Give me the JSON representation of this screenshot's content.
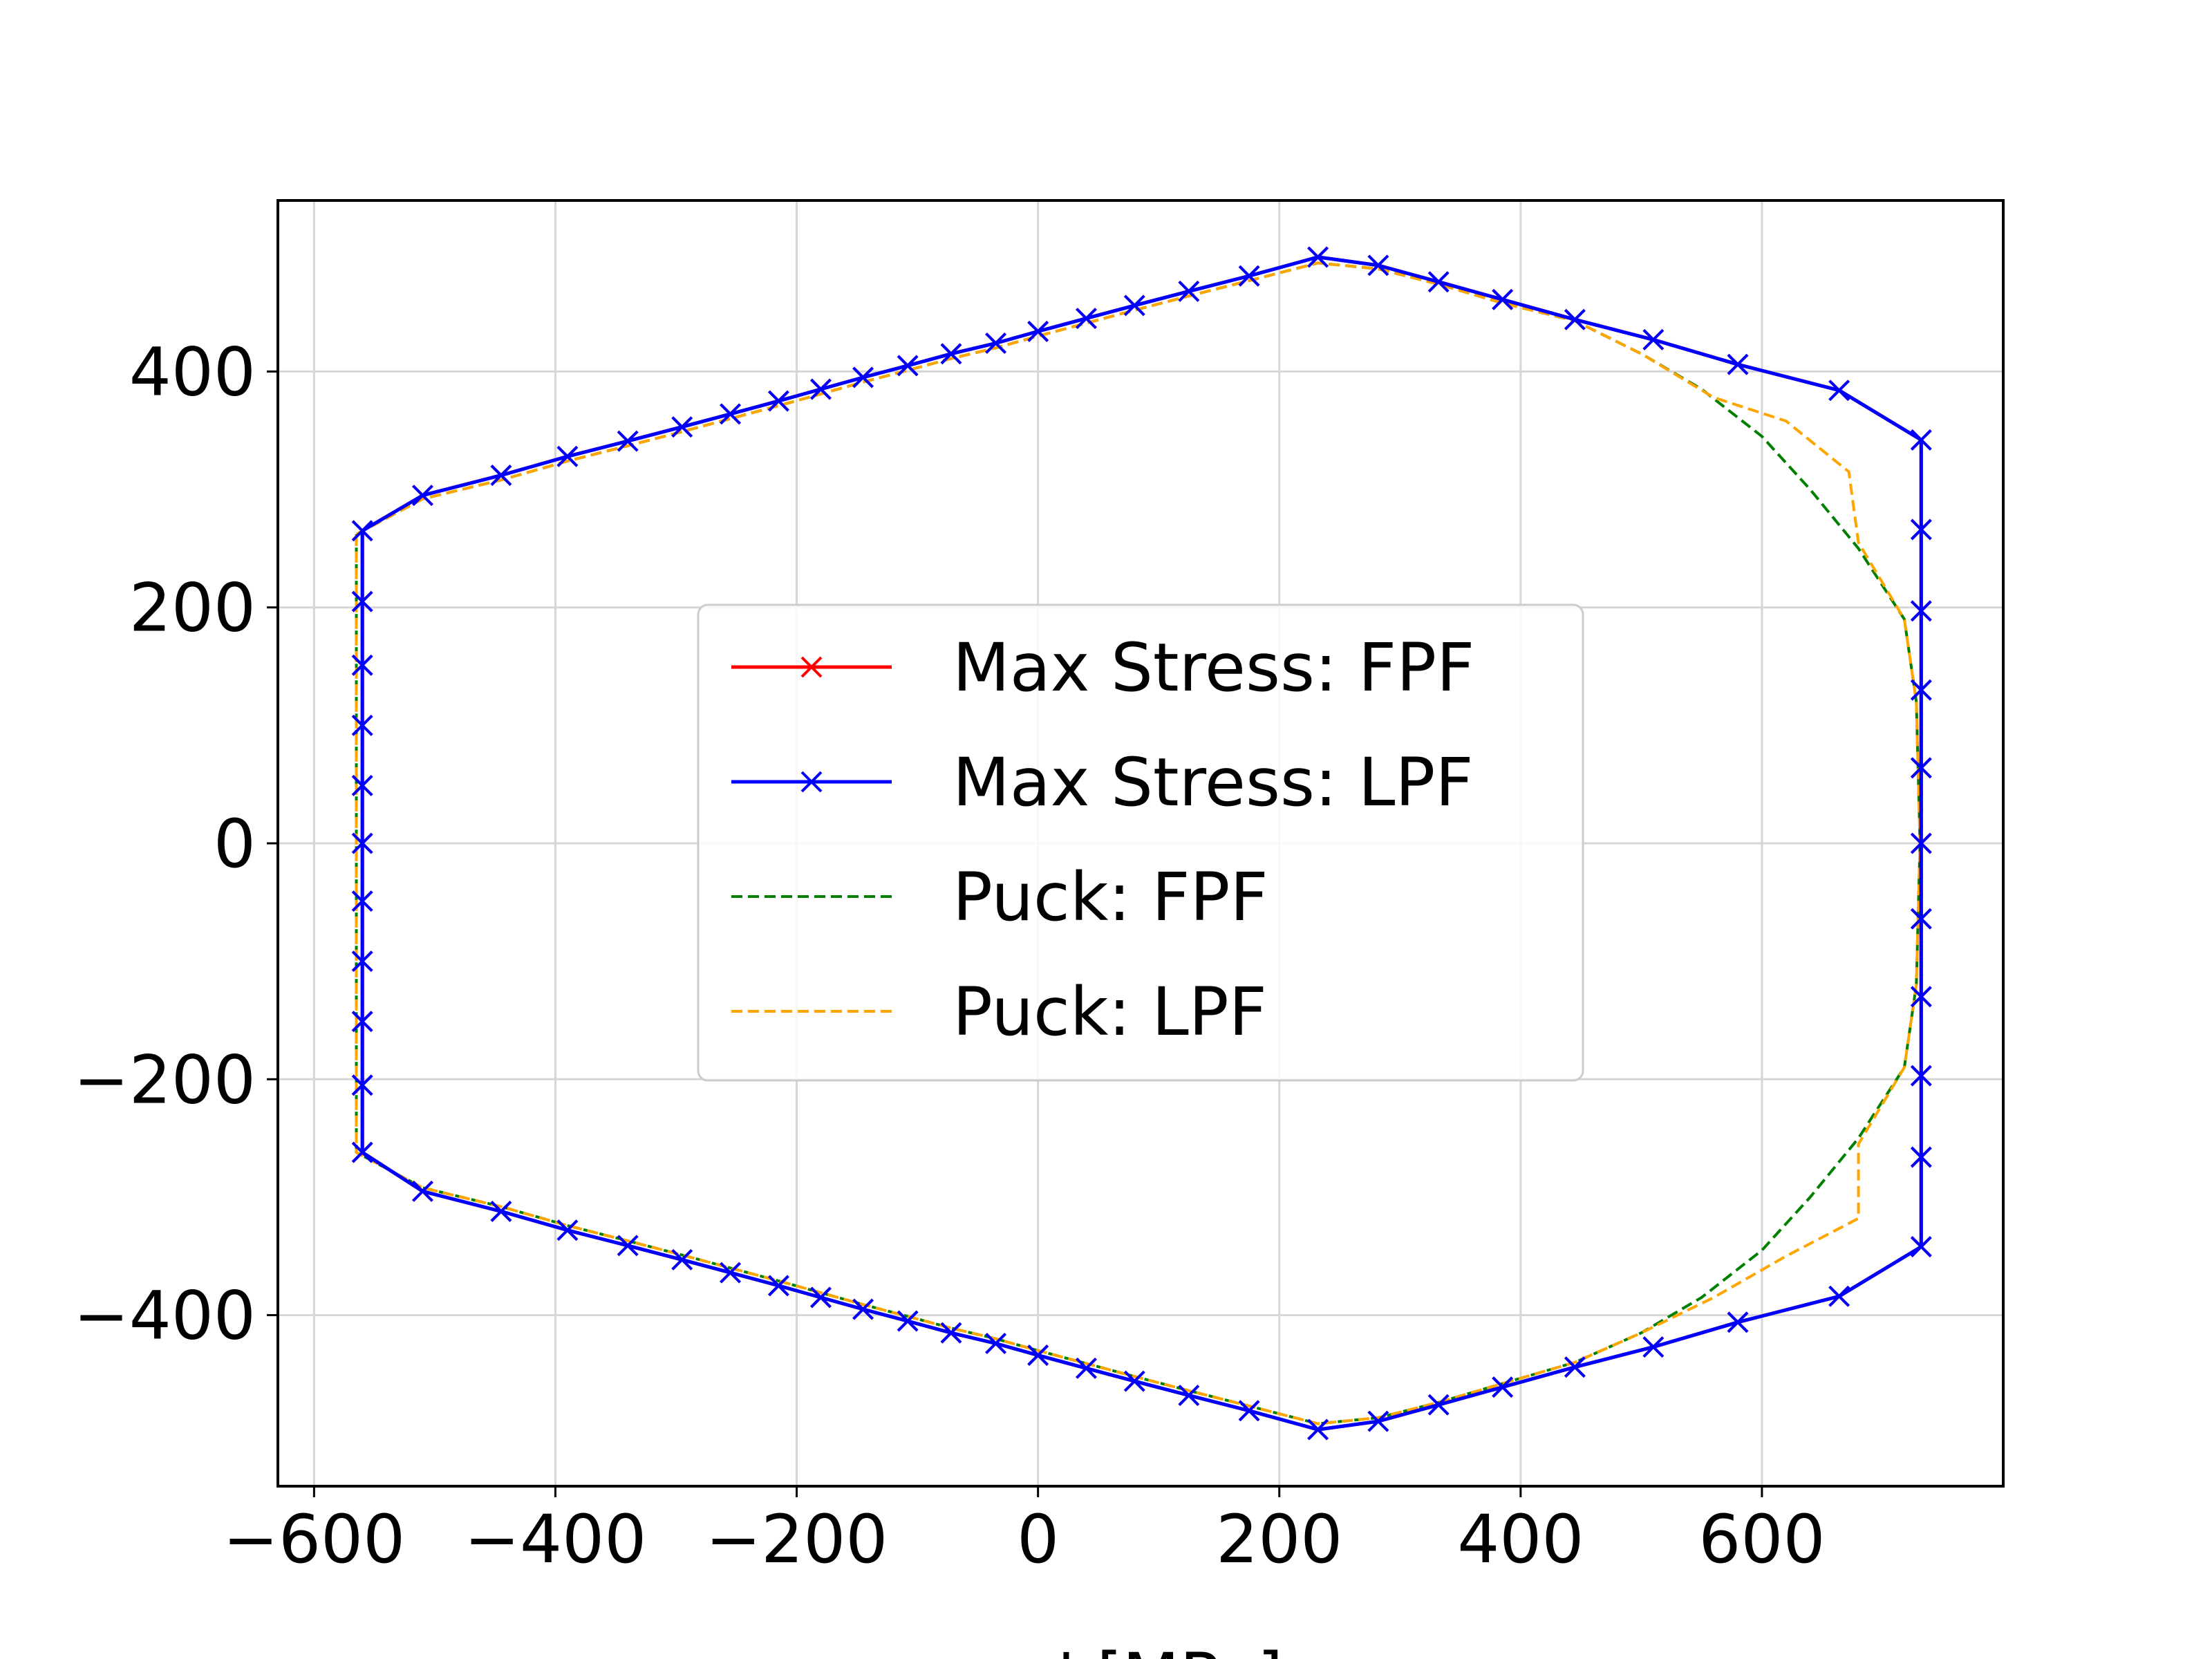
{
  "chart_data": {
    "type": "line",
    "title": "",
    "xlabel": "σ_x' [MPa]",
    "ylabel": "",
    "xlim": [
      -630,
      800
    ],
    "ylim": [
      -545,
      545
    ],
    "xticks": [
      -600,
      -400,
      -200,
      0,
      200,
      400,
      600
    ],
    "yticks": [
      -400,
      -200,
      0,
      200,
      400
    ],
    "xtick_labels": [
      "−600",
      "−400",
      "−200",
      "0",
      "200",
      "400",
      "600"
    ],
    "ytick_labels": [
      "−400",
      "−200",
      "0",
      "200",
      "400"
    ],
    "grid": true,
    "legend_position": "center",
    "series": [
      {
        "name": "Max Stress: FPF",
        "color": "#ff0000",
        "style": "solid",
        "marker": "x",
        "points": [
          [
            -560,
            265
          ],
          [
            -510,
            295
          ],
          [
            -445,
            312
          ],
          [
            -390,
            328
          ],
          [
            -340,
            341
          ],
          [
            -295,
            353
          ],
          [
            -255,
            364
          ],
          [
            -215,
            375
          ],
          [
            -180,
            385
          ],
          [
            -145,
            395
          ],
          [
            -108,
            405
          ],
          [
            -72,
            415
          ],
          [
            -35,
            424
          ],
          [
            0,
            434
          ],
          [
            40,
            445
          ],
          [
            80,
            456
          ],
          [
            125,
            468
          ],
          [
            175,
            481
          ],
          [
            232,
            497
          ],
          [
            282,
            490
          ],
          [
            332,
            476
          ],
          [
            385,
            461
          ],
          [
            445,
            444
          ],
          [
            510,
            427
          ],
          [
            580,
            406
          ],
          [
            664,
            384
          ],
          [
            732,
            342
          ],
          [
            732,
            266
          ],
          [
            732,
            197
          ],
          [
            732,
            130
          ],
          [
            732,
            64
          ],
          [
            732,
            0
          ],
          [
            732,
            -64
          ],
          [
            732,
            -130
          ],
          [
            732,
            -197
          ],
          [
            732,
            -266
          ],
          [
            732,
            -342
          ],
          [
            664,
            -384
          ],
          [
            580,
            -406
          ],
          [
            510,
            -427
          ],
          [
            445,
            -444
          ],
          [
            385,
            -461
          ],
          [
            332,
            -476
          ],
          [
            282,
            -490
          ],
          [
            232,
            -497
          ],
          [
            175,
            -481
          ],
          [
            125,
            -468
          ],
          [
            80,
            -456
          ],
          [
            40,
            -445
          ],
          [
            0,
            -434
          ],
          [
            -35,
            -424
          ],
          [
            -72,
            -415
          ],
          [
            -108,
            -405
          ],
          [
            -145,
            -395
          ],
          [
            -180,
            -385
          ],
          [
            -215,
            -375
          ],
          [
            -255,
            -364
          ],
          [
            -295,
            -353
          ],
          [
            -340,
            -341
          ],
          [
            -390,
            -328
          ],
          [
            -445,
            -312
          ],
          [
            -510,
            -295
          ],
          [
            -560,
            -262
          ],
          [
            -560,
            -205
          ],
          [
            -560,
            -151
          ],
          [
            -560,
            -100
          ],
          [
            -560,
            -49
          ],
          [
            -560,
            0
          ],
          [
            -560,
            49
          ],
          [
            -560,
            100
          ],
          [
            -560,
            151
          ],
          [
            -560,
            205
          ],
          [
            -560,
            265
          ]
        ]
      },
      {
        "name": "Max Stress: LPF",
        "color": "#0000ff",
        "style": "solid",
        "marker": "x",
        "points": [
          [
            -560,
            265
          ],
          [
            -510,
            295
          ],
          [
            -445,
            312
          ],
          [
            -390,
            328
          ],
          [
            -340,
            341
          ],
          [
            -295,
            353
          ],
          [
            -255,
            364
          ],
          [
            -215,
            375
          ],
          [
            -180,
            385
          ],
          [
            -145,
            395
          ],
          [
            -108,
            405
          ],
          [
            -72,
            415
          ],
          [
            -35,
            424
          ],
          [
            0,
            434
          ],
          [
            40,
            445
          ],
          [
            80,
            456
          ],
          [
            125,
            468
          ],
          [
            175,
            481
          ],
          [
            232,
            497
          ],
          [
            282,
            490
          ],
          [
            332,
            476
          ],
          [
            385,
            461
          ],
          [
            445,
            444
          ],
          [
            510,
            427
          ],
          [
            580,
            406
          ],
          [
            664,
            384
          ],
          [
            732,
            342
          ],
          [
            732,
            266
          ],
          [
            732,
            197
          ],
          [
            732,
            130
          ],
          [
            732,
            64
          ],
          [
            732,
            0
          ],
          [
            732,
            -64
          ],
          [
            732,
            -130
          ],
          [
            732,
            -197
          ],
          [
            732,
            -266
          ],
          [
            732,
            -342
          ],
          [
            664,
            -384
          ],
          [
            580,
            -406
          ],
          [
            510,
            -427
          ],
          [
            445,
            -444
          ],
          [
            385,
            -461
          ],
          [
            332,
            -476
          ],
          [
            282,
            -490
          ],
          [
            232,
            -497
          ],
          [
            175,
            -481
          ],
          [
            125,
            -468
          ],
          [
            80,
            -456
          ],
          [
            40,
            -445
          ],
          [
            0,
            -434
          ],
          [
            -35,
            -424
          ],
          [
            -72,
            -415
          ],
          [
            -108,
            -405
          ],
          [
            -145,
            -395
          ],
          [
            -180,
            -385
          ],
          [
            -215,
            -375
          ],
          [
            -255,
            -364
          ],
          [
            -295,
            -353
          ],
          [
            -340,
            -341
          ],
          [
            -390,
            -328
          ],
          [
            -445,
            -312
          ],
          [
            -510,
            -295
          ],
          [
            -560,
            -262
          ],
          [
            -560,
            -205
          ],
          [
            -560,
            -151
          ],
          [
            -560,
            -100
          ],
          [
            -560,
            -49
          ],
          [
            -560,
            0
          ],
          [
            -560,
            49
          ],
          [
            -560,
            100
          ],
          [
            -560,
            151
          ],
          [
            -560,
            205
          ],
          [
            -560,
            265
          ]
        ]
      },
      {
        "name": "Puck: FPF",
        "color": "#008000",
        "style": "dashed",
        "marker": "none",
        "points": [
          [
            -565,
            262
          ],
          [
            -510,
            292
          ],
          [
            -445,
            308
          ],
          [
            -390,
            324
          ],
          [
            -340,
            337
          ],
          [
            -295,
            349
          ],
          [
            -255,
            360
          ],
          [
            -215,
            371
          ],
          [
            -180,
            381
          ],
          [
            -145,
            391
          ],
          [
            -108,
            401
          ],
          [
            -72,
            411
          ],
          [
            -35,
            420
          ],
          [
            0,
            430
          ],
          [
            40,
            441
          ],
          [
            80,
            452
          ],
          [
            125,
            464
          ],
          [
            175,
            477
          ],
          [
            232,
            492
          ],
          [
            282,
            487
          ],
          [
            332,
            474
          ],
          [
            385,
            458
          ],
          [
            445,
            443
          ],
          [
            500,
            415
          ],
          [
            550,
            385
          ],
          [
            600,
            345
          ],
          [
            640,
            300
          ],
          [
            680,
            250
          ],
          [
            718,
            190
          ],
          [
            728,
            120
          ],
          [
            731,
            0
          ],
          [
            728,
            -120
          ],
          [
            718,
            -190
          ],
          [
            680,
            -250
          ],
          [
            640,
            -300
          ],
          [
            600,
            -345
          ],
          [
            550,
            -385
          ],
          [
            500,
            -415
          ],
          [
            445,
            -440
          ],
          [
            385,
            -458
          ],
          [
            332,
            -474
          ],
          [
            282,
            -487
          ],
          [
            232,
            -492
          ],
          [
            175,
            -477
          ],
          [
            125,
            -464
          ],
          [
            80,
            -452
          ],
          [
            40,
            -441
          ],
          [
            0,
            -430
          ],
          [
            -35,
            -420
          ],
          [
            -72,
            -411
          ],
          [
            -108,
            -401
          ],
          [
            -145,
            -391
          ],
          [
            -180,
            -381
          ],
          [
            -215,
            -371
          ],
          [
            -255,
            -360
          ],
          [
            -295,
            -349
          ],
          [
            -340,
            -337
          ],
          [
            -390,
            -324
          ],
          [
            -445,
            -308
          ],
          [
            -510,
            -292
          ],
          [
            -565,
            -262
          ],
          [
            -565,
            0
          ],
          [
            -565,
            262
          ]
        ]
      },
      {
        "name": "Puck: LPF",
        "color": "#ffa500",
        "style": "dashed",
        "marker": "none",
        "points": [
          [
            -565,
            262
          ],
          [
            -510,
            292
          ],
          [
            -445,
            308
          ],
          [
            -390,
            324
          ],
          [
            -340,
            337
          ],
          [
            -295,
            349
          ],
          [
            -255,
            360
          ],
          [
            -215,
            371
          ],
          [
            -180,
            381
          ],
          [
            -145,
            391
          ],
          [
            -108,
            401
          ],
          [
            -72,
            411
          ],
          [
            -35,
            420
          ],
          [
            0,
            430
          ],
          [
            40,
            441
          ],
          [
            80,
            452
          ],
          [
            125,
            464
          ],
          [
            175,
            477
          ],
          [
            232,
            492
          ],
          [
            282,
            487
          ],
          [
            332,
            474
          ],
          [
            385,
            458
          ],
          [
            445,
            443
          ],
          [
            500,
            415
          ],
          [
            560,
            378
          ],
          [
            620,
            358
          ],
          [
            672,
            315
          ],
          [
            680,
            255
          ],
          [
            718,
            190
          ],
          [
            728,
            120
          ],
          [
            731,
            0
          ],
          [
            728,
            -120
          ],
          [
            718,
            -190
          ],
          [
            680,
            -255
          ],
          [
            680,
            -318
          ],
          [
            620,
            -350
          ],
          [
            560,
            -385
          ],
          [
            500,
            -415
          ],
          [
            445,
            -440
          ],
          [
            385,
            -458
          ],
          [
            332,
            -474
          ],
          [
            282,
            -487
          ],
          [
            232,
            -492
          ],
          [
            175,
            -477
          ],
          [
            125,
            -464
          ],
          [
            80,
            -452
          ],
          [
            40,
            -441
          ],
          [
            0,
            -430
          ],
          [
            -35,
            -420
          ],
          [
            -72,
            -411
          ],
          [
            -108,
            -401
          ],
          [
            -145,
            -391
          ],
          [
            -180,
            -381
          ],
          [
            -215,
            -371
          ],
          [
            -255,
            -360
          ],
          [
            -295,
            -349
          ],
          [
            -340,
            -337
          ],
          [
            -390,
            -324
          ],
          [
            -445,
            -308
          ],
          [
            -510,
            -292
          ],
          [
            -565,
            -262
          ],
          [
            -565,
            0
          ],
          [
            -565,
            262
          ]
        ]
      }
    ]
  }
}
